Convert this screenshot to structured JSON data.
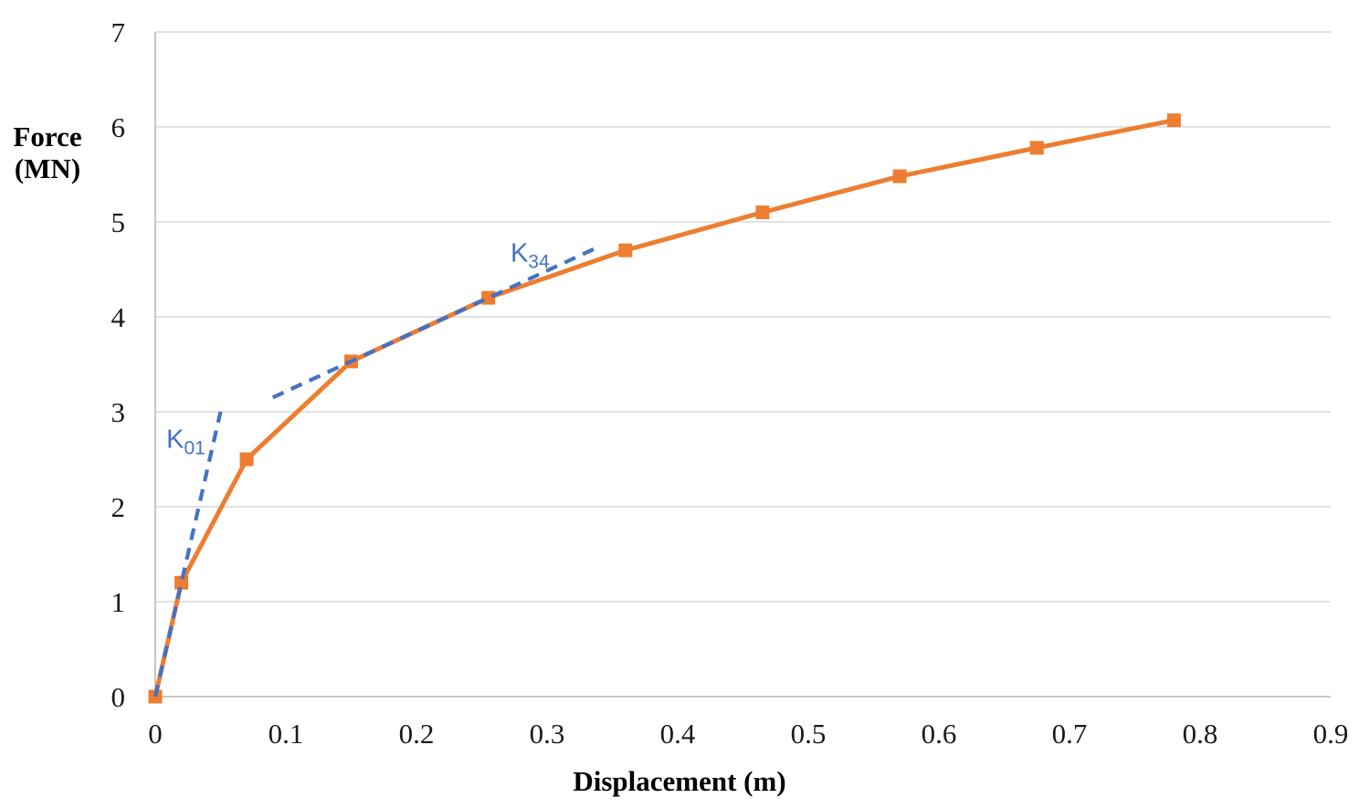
{
  "chart_data": {
    "type": "line",
    "title": "",
    "xlabel": "Displacement (m)",
    "ylabel_lines": [
      "Force",
      "(MN)"
    ],
    "xlim": [
      0,
      0.9
    ],
    "ylim": [
      0,
      7
    ],
    "x_tick_labels": [
      "0",
      "0.1",
      "0.2",
      "0.3",
      "0.4",
      "0.5",
      "0.6",
      "0.7",
      "0.8",
      "0.9"
    ],
    "y_tick_labels": [
      "0",
      "1",
      "2",
      "3",
      "4",
      "5",
      "6",
      "7"
    ],
    "grid": "horizontal",
    "legend": "none",
    "series": [
      {
        "name": "load-displacement-curve",
        "color": "#ED7D31",
        "marker": "square",
        "x": [
          0,
          0.02,
          0.07,
          0.15,
          0.255,
          0.36,
          0.465,
          0.57,
          0.675,
          0.78
        ],
        "y": [
          0,
          1.2,
          2.5,
          3.53,
          4.2,
          4.7,
          5.1,
          5.48,
          5.78,
          6.07
        ]
      }
    ],
    "annotations": [
      {
        "name": "K01-secant-stiffness-line",
        "style": "dashed",
        "color": "#4472C4",
        "x1": 0,
        "y1": 0,
        "x2": 0.05,
        "y2": 3.0,
        "label_base": "K",
        "label_sub": "01",
        "label_x": 0.0085,
        "label_y": 2.62
      },
      {
        "name": "K34-secant-stiffness-line",
        "style": "dashed",
        "color": "#4472C4",
        "x1": 0.09,
        "y1": 3.15,
        "x2": 0.34,
        "y2": 4.74,
        "label_base": "K",
        "label_sub": "34",
        "label_x": 0.272,
        "label_y": 4.58
      }
    ],
    "colors": {
      "series_orange": "#ED7D31",
      "annotation_blue": "#4472C4",
      "gridline": "#D9D9D9",
      "axis_line": "#BFBFBF",
      "text": "#1a1a1a"
    }
  }
}
